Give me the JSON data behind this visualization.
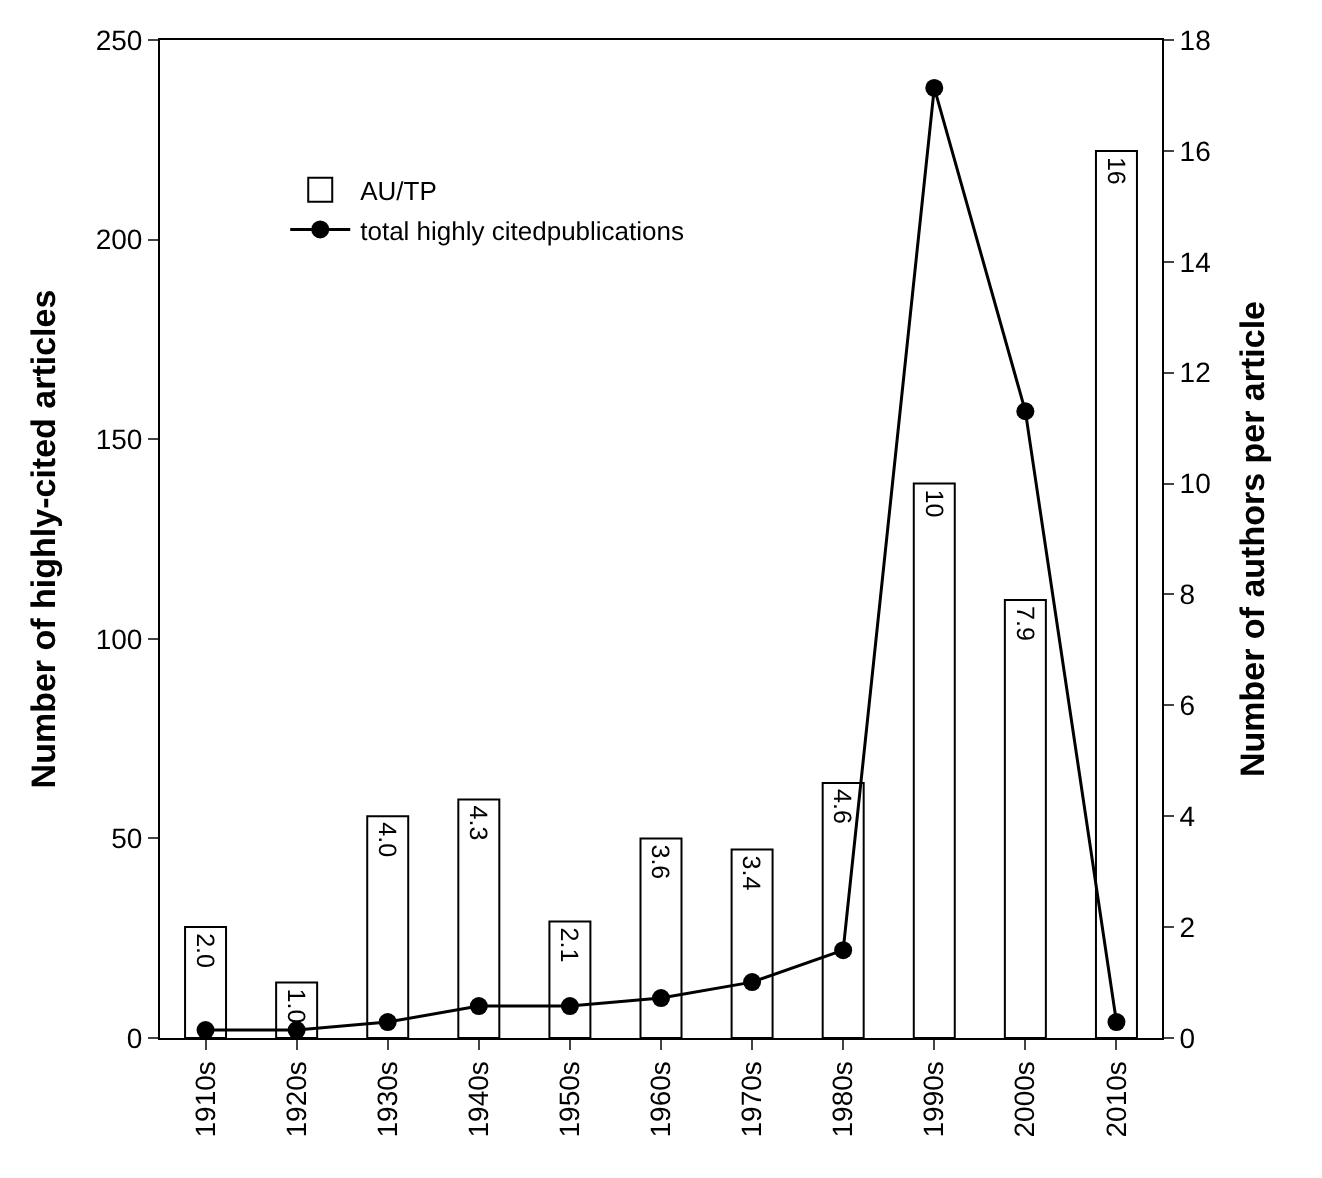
{
  "chart_data": {
    "type": "bar",
    "categories": [
      "1910s",
      "1920s",
      "1930s",
      "1940s",
      "1950s",
      "1960s",
      "1970s",
      "1980s",
      "1990s",
      "2000s",
      "2010s"
    ],
    "ylabel": "Number of highly-cited articles",
    "y2label": "Number of authors per article",
    "ylim": [
      0,
      250
    ],
    "yticks": [
      0,
      50,
      100,
      150,
      200,
      250
    ],
    "y2lim": [
      0,
      18
    ],
    "y2ticks": [
      0,
      2,
      4,
      6,
      8,
      10,
      12,
      14,
      16,
      18
    ],
    "legend": "top left",
    "series": [
      {
        "name": "AU/TP",
        "axis": "y2",
        "color": "#ffffff",
        "values": [
          2.0,
          1.0,
          4.0,
          4.3,
          2.1,
          3.6,
          3.4,
          4.6,
          10,
          7.9,
          16
        ],
        "value_labels": [
          "2.0",
          "1.0",
          "4.0",
          "4.3",
          "2.1",
          "3.6",
          "3.4",
          "4.6",
          "10",
          "7.9",
          "16"
        ]
      },
      {
        "name": "total highly citedpublications",
        "type": "line",
        "axis": "y",
        "color": "#000000",
        "marker": "circle",
        "values": [
          2,
          2,
          4,
          8,
          8,
          10,
          14,
          22,
          238,
          157,
          4
        ]
      }
    ]
  }
}
